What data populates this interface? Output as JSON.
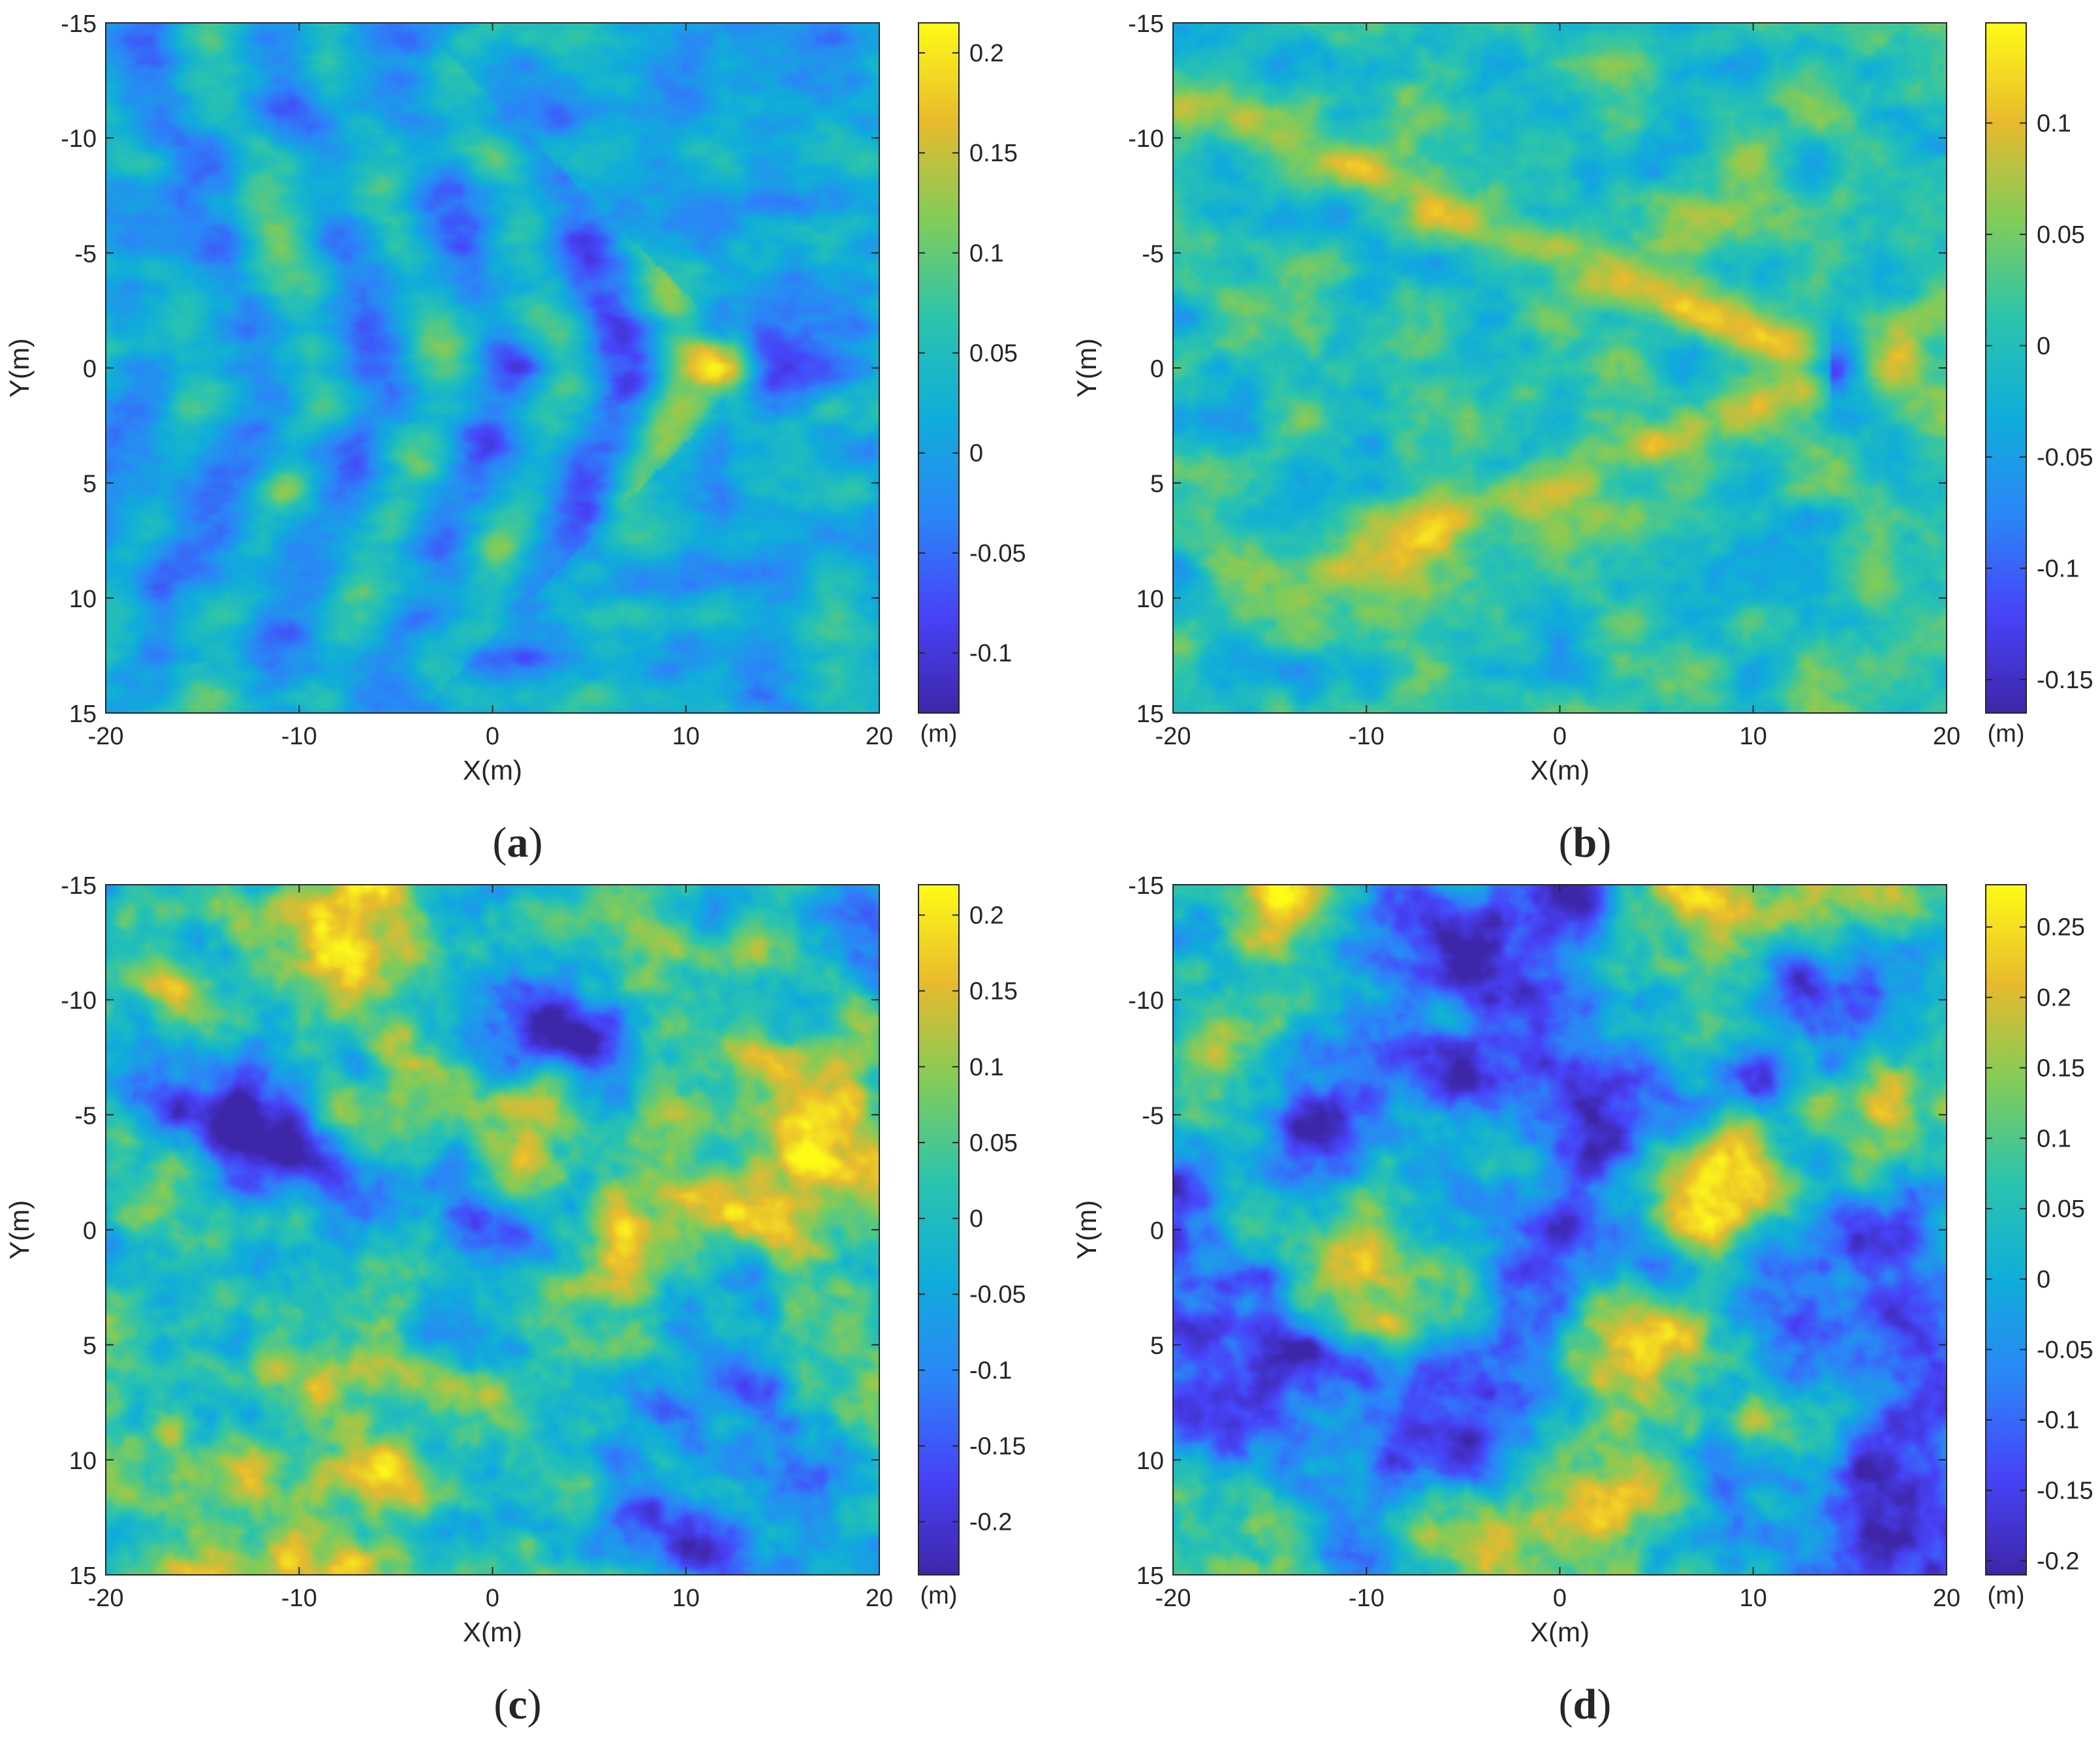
{
  "colors": {
    "colormap": [
      "#3e26a8",
      "#4743f8",
      "#2b86f7",
      "#10adda",
      "#2bc4ad",
      "#81cc59",
      "#e8ba2d",
      "#fefb17"
    ],
    "axis": "#262626",
    "caption": "#000000"
  },
  "chart_data": [
    {
      "type": "heatmap",
      "caption_letter": "a",
      "xlabel": "X(m)",
      "ylabel": "Y(m)",
      "xlim": [
        -20,
        20
      ],
      "ylim": [
        -15,
        15
      ],
      "x_ticks": [
        "-20",
        "-10",
        "0",
        "10",
        "20"
      ],
      "y_ticks": [
        "-15",
        "-10",
        "-5",
        "0",
        "5",
        "10",
        "15"
      ],
      "y_reversed": true,
      "colorbar": {
        "unit": "(m)",
        "min": -0.13,
        "max": 0.215,
        "ticks": [
          "0.2",
          "0.15",
          "0.1",
          "0.05",
          "0",
          "-0.05",
          "-0.1"
        ]
      },
      "pattern": "kelvin-wake",
      "wake_apex": [
        12,
        0
      ]
    },
    {
      "type": "heatmap",
      "caption_letter": "b",
      "xlabel": "X(m)",
      "ylabel": "Y(m)",
      "xlim": [
        -20,
        20
      ],
      "ylim": [
        -15,
        15
      ],
      "x_ticks": [
        "-20",
        "-10",
        "0",
        "10",
        "20"
      ],
      "y_ticks": [
        "-15",
        "-10",
        "-5",
        "0",
        "5",
        "10",
        "15"
      ],
      "y_reversed": true,
      "colorbar": {
        "unit": "(m)",
        "min": -0.165,
        "max": 0.145,
        "ticks": [
          "0.1",
          "0.05",
          "0",
          "-0.05",
          "-0.1",
          "-0.15"
        ]
      },
      "pattern": "v-wake",
      "wake_apex": [
        14,
        0
      ]
    },
    {
      "type": "heatmap",
      "caption_letter": "c",
      "xlabel": "X(m)",
      "ylabel": "Y(m)",
      "xlim": [
        -20,
        20
      ],
      "ylim": [
        -15,
        15
      ],
      "x_ticks": [
        "-20",
        "-10",
        "0",
        "10",
        "20"
      ],
      "y_ticks": [
        "-15",
        "-10",
        "-5",
        "0",
        "5",
        "10",
        "15"
      ],
      "y_reversed": true,
      "colorbar": {
        "unit": "(m)",
        "min": -0.235,
        "max": 0.22,
        "ticks": [
          "0.2",
          "0.15",
          "0.1",
          "0.05",
          "0",
          "-0.05",
          "-0.1",
          "-0.15",
          "-0.2"
        ]
      },
      "pattern": "sea-clutter"
    },
    {
      "type": "heatmap",
      "caption_letter": "d",
      "xlabel": "X(m)",
      "ylabel": "Y(m)",
      "xlim": [
        -20,
        20
      ],
      "ylim": [
        -15,
        15
      ],
      "x_ticks": [
        "-20",
        "-10",
        "0",
        "10",
        "20"
      ],
      "y_ticks": [
        "-15",
        "-10",
        "-5",
        "0",
        "5",
        "10",
        "15"
      ],
      "y_reversed": true,
      "colorbar": {
        "unit": "(m)",
        "min": -0.21,
        "max": 0.28,
        "ticks": [
          "0.25",
          "0.2",
          "0.15",
          "0.1",
          "0.05",
          "0",
          "-0.05",
          "-0.1",
          "-0.15",
          "-0.2"
        ]
      },
      "pattern": "sea-clutter"
    }
  ]
}
